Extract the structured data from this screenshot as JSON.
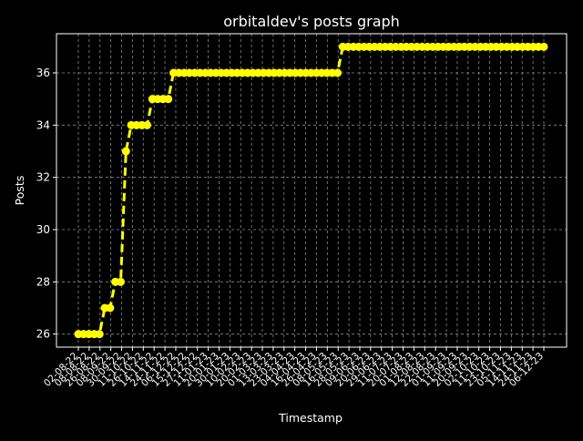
{
  "chart_data": {
    "type": "line",
    "title": "orbitaldev's posts graph",
    "xlabel": "Timestamp",
    "ylabel": "Posts",
    "ylim": [
      25.5,
      37.5
    ],
    "yticks": [
      26,
      28,
      30,
      32,
      34,
      36
    ],
    "grid": true,
    "line_style": "dashed",
    "marker": "circle",
    "colors": {
      "background": "#000000",
      "line": "#ffff00",
      "grid": "#8a8a8a",
      "text": "#ffffff"
    },
    "x_tick_labels": [
      "02-08-22",
      "08-08-22",
      "26-08-22",
      "08-09-22",
      "30-09-22",
      "11-10-22",
      "26-10-22",
      "14-11-22",
      "24-11-22",
      "06-12-22",
      "15-12-22",
      "27-12-22",
      "11-01-23",
      "20-01-23",
      "30-01-23",
      "10-02-23",
      "20-02-23",
      "01-03-23",
      "13-03-23",
      "23-03-23",
      "04-04-23",
      "16-04-23",
      "26-04-23",
      "08-05-23",
      "16-05-23",
      "28-05-23",
      "09-06-23",
      "20-06-23",
      "29-06-23",
      "11-07-23",
      "20-07-23",
      "01-08-23",
      "12-08-23",
      "22-08-23",
      "01-09-23",
      "11-09-23",
      "20-09-23",
      "02-10-23",
      "11-10-23",
      "23-10-23",
      "05-11-23",
      "14-11-23",
      "24-11-23",
      "06-12-23"
    ],
    "values": [
      26,
      26,
      26,
      26,
      26,
      27,
      27,
      28,
      28,
      33,
      34,
      34,
      34,
      34,
      35,
      35,
      35,
      35,
      36,
      36,
      36,
      36,
      36,
      36,
      36,
      36,
      36,
      36,
      36,
      36,
      36,
      36,
      36,
      36,
      36,
      36,
      36,
      36,
      36,
      36,
      36,
      36,
      36,
      36,
      36,
      36,
      36,
      36,
      36,
      36,
      37,
      37,
      37,
      37,
      37,
      37,
      37,
      37,
      37,
      37,
      37,
      37,
      37,
      37,
      37,
      37,
      37,
      37,
      37,
      37,
      37,
      37,
      37,
      37,
      37,
      37,
      37,
      37,
      37,
      37,
      37,
      37,
      37,
      37,
      37,
      37,
      37,
      37,
      37
    ]
  }
}
